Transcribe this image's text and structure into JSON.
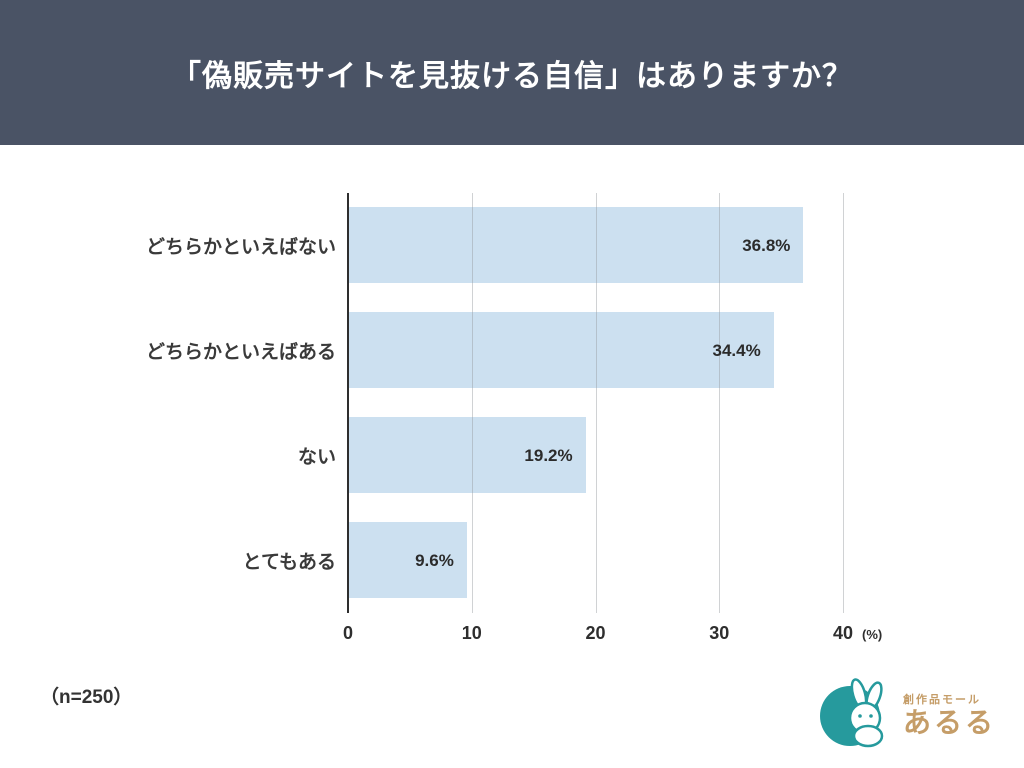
{
  "header": {
    "title": "「偽販売サイトを見抜ける自信」はありますか？",
    "bg_color": "#4a5365"
  },
  "chart_data": {
    "type": "bar",
    "orientation": "horizontal",
    "title": "「偽販売サイトを見抜ける自信」はありますか？",
    "categories": [
      "どちらかといえばない",
      "どちらかといえばある",
      "ない",
      "とてもある"
    ],
    "values": [
      36.8,
      34.4,
      19.2,
      9.6
    ],
    "value_labels": [
      "36.8%",
      "34.4%",
      "19.2%",
      "9.6%"
    ],
    "xlim": [
      0,
      40
    ],
    "x_ticks": [
      0,
      10,
      20,
      30,
      40
    ],
    "x_tick_labels": [
      "0",
      "10",
      "20",
      "30",
      "40"
    ],
    "x_unit": "(%)",
    "bar_color": "#cce0f0",
    "grid": true,
    "legend": false
  },
  "footer": {
    "sample_note": "（n=250）"
  },
  "logo": {
    "tagline": "創作品モール",
    "name": "あるる",
    "circle_color": "#269a9d",
    "text_color": "#c59d68"
  }
}
